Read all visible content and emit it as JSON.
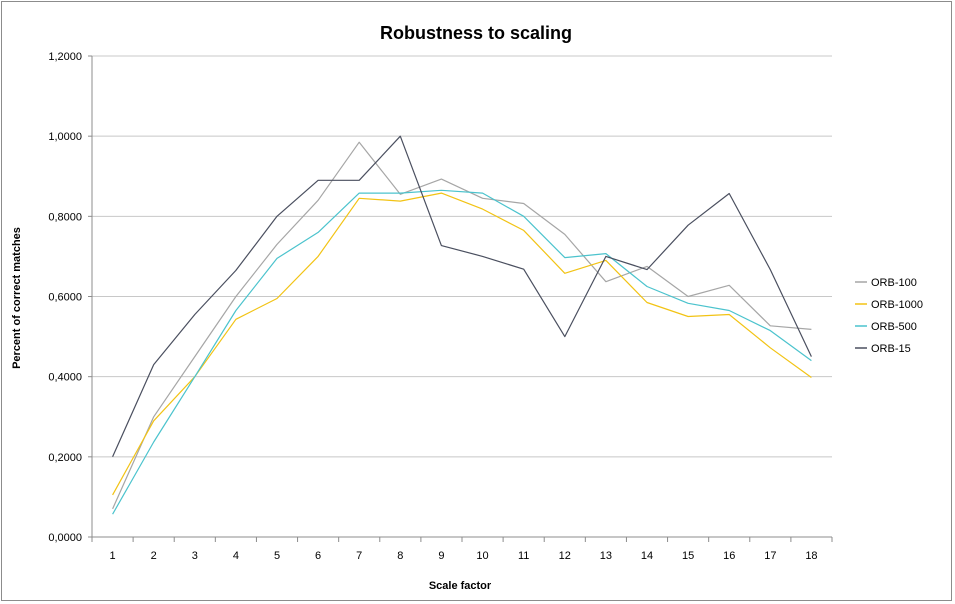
{
  "chart_data": {
    "type": "line",
    "title": "Robustness to scaling",
    "xlabel": "Scale factor",
    "ylabel": "Percent of correct matches",
    "x": [
      1,
      2,
      3,
      4,
      5,
      6,
      7,
      8,
      9,
      10,
      11,
      12,
      13,
      14,
      15,
      16,
      17,
      18
    ],
    "x_tick_labels": [
      "1",
      "2",
      "3",
      "4",
      "5",
      "6",
      "7",
      "8",
      "9",
      "10",
      "11",
      "12",
      "13",
      "14",
      "15",
      "16",
      "17",
      "18"
    ],
    "ylim": [
      0,
      1.2
    ],
    "y_ticks": [
      0,
      0.2,
      0.4,
      0.6,
      0.8,
      1.0,
      1.2
    ],
    "y_tick_labels": [
      "0,0000",
      "0,2000",
      "0,4000",
      "0,6000",
      "0,8000",
      "1,0000",
      "1,2000"
    ],
    "grid": "horizontal",
    "legend_position": "right",
    "series": [
      {
        "name": "ORB-100",
        "color": "#a6a6a6",
        "values": [
          0.07,
          0.3,
          0.45,
          0.6,
          0.73,
          0.84,
          0.985,
          0.855,
          0.893,
          0.845,
          0.832,
          0.755,
          0.637,
          0.675,
          0.6,
          0.628,
          0.527,
          0.518
        ]
      },
      {
        "name": "ORB-1000",
        "color": "#f2c314",
        "values": [
          0.105,
          0.29,
          0.4,
          0.543,
          0.595,
          0.7,
          0.845,
          0.838,
          0.858,
          0.818,
          0.765,
          0.658,
          0.69,
          0.585,
          0.55,
          0.555,
          0.472,
          0.398
        ]
      },
      {
        "name": "ORB-500",
        "color": "#4bc3cd",
        "values": [
          0.057,
          0.237,
          0.4,
          0.565,
          0.695,
          0.76,
          0.858,
          0.858,
          0.865,
          0.858,
          0.8,
          0.697,
          0.707,
          0.625,
          0.583,
          0.565,
          0.515,
          0.44
        ]
      },
      {
        "name": "ORB-15",
        "color": "#4a4f5f",
        "values": [
          0.2,
          0.43,
          0.555,
          0.665,
          0.8,
          0.89,
          0.89,
          1.0,
          0.727,
          0.7,
          0.668,
          0.5,
          0.7,
          0.667,
          0.778,
          0.857,
          0.667,
          0.45
        ]
      }
    ]
  }
}
